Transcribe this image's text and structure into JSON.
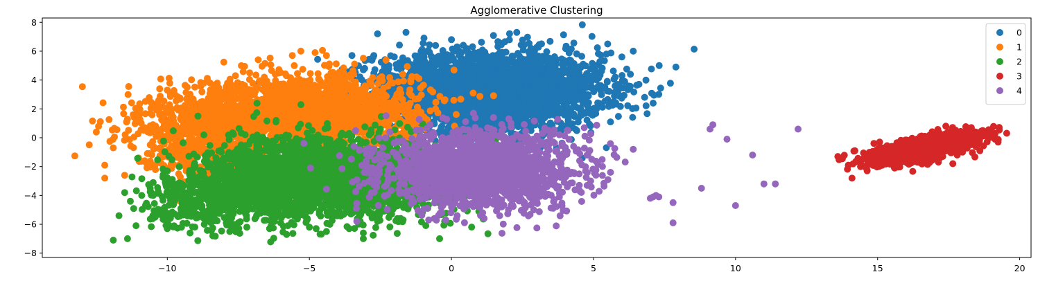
{
  "chart_data": {
    "type": "scatter",
    "title": "Agglomerative Clustering",
    "xlabel": "",
    "ylabel": "",
    "xlim": [
      -14.4,
      20.4
    ],
    "ylim": [
      -8.3,
      8.3
    ],
    "xticks": [
      -10,
      -5,
      0,
      5,
      10,
      15,
      20
    ],
    "xtick_labels": [
      "−10",
      "−5",
      "0",
      "5",
      "10",
      "15",
      "20"
    ],
    "yticks": [
      -8,
      -6,
      -4,
      -2,
      0,
      2,
      4,
      6,
      8
    ],
    "ytick_labels": [
      "−8",
      "−6",
      "−4",
      "−2",
      "0",
      "2",
      "4",
      "6",
      "8"
    ],
    "grid": false,
    "legend_position": "top-right",
    "series": [
      {
        "name": "0",
        "color": "#1f77b4",
        "points": [
          [
            1.9,
            3.4
          ],
          [
            -3.1,
            4.7
          ],
          [
            -2.2,
            5.0
          ],
          [
            0,
            6.8
          ],
          [
            0.8,
            5.9
          ],
          [
            2.3,
            7.3
          ],
          [
            -1.6,
            7.3
          ],
          [
            -2.6,
            7.2
          ],
          [
            -3.5,
            5.7
          ],
          [
            3.9,
            5.1
          ],
          [
            5.1,
            5.0
          ],
          [
            5.5,
            6.5
          ],
          [
            6.4,
            6.0
          ],
          [
            6.0,
            5.6
          ],
          [
            6.3,
            4.4
          ],
          [
            6.6,
            3.7
          ],
          [
            6.8,
            2.8
          ],
          [
            7.1,
            2.4
          ],
          [
            7.9,
            4.9
          ],
          [
            5.4,
            3.5
          ],
          [
            5.6,
            1.1
          ],
          [
            4.8,
            2.3
          ],
          [
            -0.5,
            1.9
          ],
          [
            1.7,
            1.9
          ],
          [
            3.2,
            0.1
          ],
          [
            2.3,
            -0.2
          ],
          [
            4.1,
            0.5
          ],
          [
            3.7,
            -0.7
          ],
          [
            4.6,
            3.6
          ],
          [
            2.8,
            6.2
          ],
          [
            0.2,
            6.3
          ],
          [
            -1.1,
            5.5
          ],
          [
            -0.6,
            4.1
          ],
          [
            1.1,
            4.7
          ],
          [
            3.0,
            3.6
          ],
          [
            4.3,
            2.7
          ],
          [
            2.6,
            1.6
          ],
          [
            0.6,
            1.5
          ],
          [
            -1.6,
            3.0
          ],
          [
            -2.5,
            4.3
          ],
          [
            5.9,
            2.9
          ],
          [
            3.4,
            4.4
          ],
          [
            1.3,
            5.3
          ],
          [
            -0.2,
            2.9
          ],
          [
            0.5,
            0.4
          ],
          [
            2.0,
            0.7
          ],
          [
            -1.2,
            0.8
          ],
          [
            2.9,
            2.6
          ]
        ],
        "clusters": [
          {
            "cx": 1.3,
            "cy": 3.2,
            "sx": 2.0,
            "sy": 1.35,
            "rot": 0,
            "n": 3000
          }
        ]
      },
      {
        "name": "1",
        "color": "#ff7f0e",
        "points": [
          [
            -12.5,
            0.4
          ],
          [
            -12.2,
            -1.9
          ],
          [
            -12.2,
            -2.8
          ],
          [
            -11.9,
            -0.7
          ],
          [
            -11.5,
            -2.6
          ],
          [
            -11.2,
            1.6
          ],
          [
            -10.8,
            0.7
          ],
          [
            -10.6,
            1.7
          ],
          [
            -10.0,
            3.3
          ],
          [
            -9.3,
            3.5
          ],
          [
            -9.0,
            1.1
          ],
          [
            -8.5,
            3.8
          ],
          [
            -7.6,
            4.3
          ],
          [
            -7.1,
            4.5
          ],
          [
            -6.8,
            5.4
          ],
          [
            -5.6,
            5.7
          ],
          [
            -5.3,
            6.0
          ],
          [
            -4.8,
            5.9
          ],
          [
            -4.4,
            5.7
          ],
          [
            -10.5,
            -1.9
          ],
          [
            -10.7,
            -1.1
          ],
          [
            -9.8,
            -0.7
          ],
          [
            -9.6,
            -2.5
          ],
          [
            -9.0,
            -2.8
          ],
          [
            -8.2,
            -2.4
          ],
          [
            -7.4,
            -1.9
          ],
          [
            -8.6,
            1.9
          ],
          [
            -6.5,
            3.1
          ],
          [
            -4.5,
            3.6
          ],
          [
            -3.2,
            3.2
          ],
          [
            -2.6,
            1.0
          ],
          [
            -2.2,
            0.4
          ],
          [
            -5.8,
            2.2
          ],
          [
            -7.0,
            0.9
          ],
          [
            -8.1,
            -0.3
          ],
          [
            -9.4,
            -1.3
          ],
          [
            -4.0,
            4.3
          ],
          [
            -3.6,
            2.2
          ],
          [
            -6.2,
            4.4
          ],
          [
            -2.9,
            2.0
          ]
        ],
        "clusters": [
          {
            "cx": -5.6,
            "cy": 1.6,
            "sx": 2.2,
            "sy": 1.3,
            "rot": 0.12,
            "n": 2200
          },
          {
            "cx": -8.8,
            "cy": 0.0,
            "sx": 1.1,
            "sy": 1.4,
            "rot": 0,
            "n": 500
          }
        ]
      },
      {
        "name": "2",
        "color": "#2ca02c",
        "points": [
          [
            -11.9,
            -7.1
          ],
          [
            -11.4,
            -7.0
          ],
          [
            -11.7,
            -5.4
          ],
          [
            -11.1,
            -6.1
          ],
          [
            -11.5,
            -3.8
          ],
          [
            -11.3,
            -4.4
          ],
          [
            -10.9,
            -4.0
          ],
          [
            -10.6,
            -3.5
          ],
          [
            -10.2,
            -5.0
          ],
          [
            -10.0,
            -6.3
          ],
          [
            -9.5,
            -6.2
          ],
          [
            -9.2,
            -6.6
          ],
          [
            -8.7,
            -6.0
          ],
          [
            -8.4,
            -6.8
          ],
          [
            -7.8,
            -6.5
          ],
          [
            -7.2,
            -6.2
          ],
          [
            -6.4,
            -6.3
          ],
          [
            -5.8,
            -6.7
          ],
          [
            -5.0,
            -6.2
          ],
          [
            -4.4,
            -6.5
          ],
          [
            -3.6,
            -6.3
          ],
          [
            -3.1,
            -7.0
          ],
          [
            -3.1,
            -6.6
          ],
          [
            -2.6,
            -5.8
          ],
          [
            -1.9,
            -5.6
          ],
          [
            -1.7,
            -5.7
          ],
          [
            -9.8,
            -4.1
          ],
          [
            -9.2,
            -4.9
          ],
          [
            -8.6,
            -5.3
          ],
          [
            -8.1,
            -1.0
          ],
          [
            -7.4,
            -0.5
          ],
          [
            -6.2,
            -0.2
          ],
          [
            -4.9,
            0.5
          ],
          [
            -3.6,
            0.3
          ],
          [
            -2.5,
            0.6
          ],
          [
            -1.6,
            -0.4
          ],
          [
            -1.0,
            -1.7
          ],
          [
            -0.5,
            -3.1
          ],
          [
            -1.0,
            -4.6
          ],
          [
            -1.4,
            -4.0
          ],
          [
            -2.4,
            -5.1
          ],
          [
            -3.5,
            -3.4
          ],
          [
            -5.4,
            -4.3
          ],
          [
            -6.8,
            -2.6
          ],
          [
            -7.5,
            -4.1
          ],
          [
            -5.2,
            -1.5
          ],
          [
            -4.0,
            -2.4
          ]
        ],
        "clusters": [
          {
            "cx": -4.4,
            "cy": -2.8,
            "sx": 2.1,
            "sy": 1.35,
            "rot": 0,
            "n": 2800
          },
          {
            "cx": -8.6,
            "cy": -4.4,
            "sx": 1.0,
            "sy": 0.9,
            "rot": 0,
            "n": 400
          }
        ]
      },
      {
        "name": "3",
        "color": "#d62728",
        "points": [
          [
            13.6,
            -1.3
          ],
          [
            14.1,
            -2.8
          ],
          [
            14.2,
            -0.9
          ],
          [
            14.4,
            -2.0
          ],
          [
            14.7,
            -1.5
          ],
          [
            14.9,
            -1.1
          ],
          [
            15.2,
            -1.8
          ],
          [
            15.6,
            -2.1
          ],
          [
            15.8,
            -0.9
          ],
          [
            16.2,
            -0.4
          ],
          [
            16.4,
            -1.7
          ],
          [
            16.9,
            0.2
          ],
          [
            17.3,
            -0.3
          ],
          [
            17.4,
            0.8
          ],
          [
            17.8,
            -1.2
          ],
          [
            18.1,
            0.1
          ],
          [
            18.3,
            0.7
          ],
          [
            18.5,
            -0.5
          ],
          [
            18.6,
            0.0
          ],
          [
            18.6,
            -0.9
          ],
          [
            17.0,
            -1.4
          ],
          [
            15.5,
            -0.6
          ],
          [
            16.8,
            -0.8
          ]
        ],
        "clusters": [
          {
            "cx": 16.7,
            "cy": -0.7,
            "sx": 1.0,
            "sy": 0.35,
            "rot": 0.42,
            "n": 1200
          }
        ]
      },
      {
        "name": "4",
        "color": "#9467bd",
        "points": [
          [
            -0.8,
            -5.7
          ],
          [
            -0.2,
            -5.7
          ],
          [
            -0.6,
            -5.6
          ],
          [
            0.2,
            -5.4
          ],
          [
            1.1,
            -5.2
          ],
          [
            1.7,
            -5.4
          ],
          [
            1.6,
            -5.0
          ],
          [
            2.6,
            -4.8
          ],
          [
            3.0,
            -4.4
          ],
          [
            3.8,
            -4.1
          ],
          [
            4.5,
            -3.3
          ],
          [
            4.9,
            -3.0
          ],
          [
            5.6,
            -2.4
          ],
          [
            4.8,
            -1.2
          ],
          [
            4.3,
            -0.6
          ],
          [
            3.9,
            -0.4
          ],
          [
            3.8,
            0.2
          ],
          [
            2.3,
            0.2
          ],
          [
            6.4,
            -0.8
          ],
          [
            7.0,
            -4.2
          ],
          [
            7.1,
            -4.1
          ],
          [
            7.2,
            -4.0
          ],
          [
            7.3,
            -4.1
          ],
          [
            7.8,
            -4.5
          ],
          [
            7.8,
            -5.9
          ],
          [
            8.8,
            -3.5
          ],
          [
            9.1,
            0.6
          ],
          [
            9.2,
            0.9
          ],
          [
            9.7,
            -0.1
          ],
          [
            10.0,
            -4.7
          ],
          [
            10.6,
            -1.2
          ],
          [
            11.0,
            -3.2
          ],
          [
            11.4,
            -3.2
          ],
          [
            12.2,
            0.6
          ],
          [
            0.5,
            -1.0
          ],
          [
            -0.8,
            -1.5
          ],
          [
            -1.3,
            -0.5
          ],
          [
            -1.1,
            -2.6
          ],
          [
            -0.6,
            -3.8
          ],
          [
            1.2,
            -3.4
          ],
          [
            2.5,
            -2.3
          ],
          [
            3.3,
            -1.6
          ],
          [
            0.2,
            0.5
          ],
          [
            1.8,
            -0.8
          ],
          [
            -0.3,
            -4.7
          ]
        ],
        "clusters": [
          {
            "cx": 1.0,
            "cy": -2.2,
            "sx": 1.7,
            "sy": 1.3,
            "rot": 0,
            "n": 1800
          }
        ]
      }
    ]
  }
}
